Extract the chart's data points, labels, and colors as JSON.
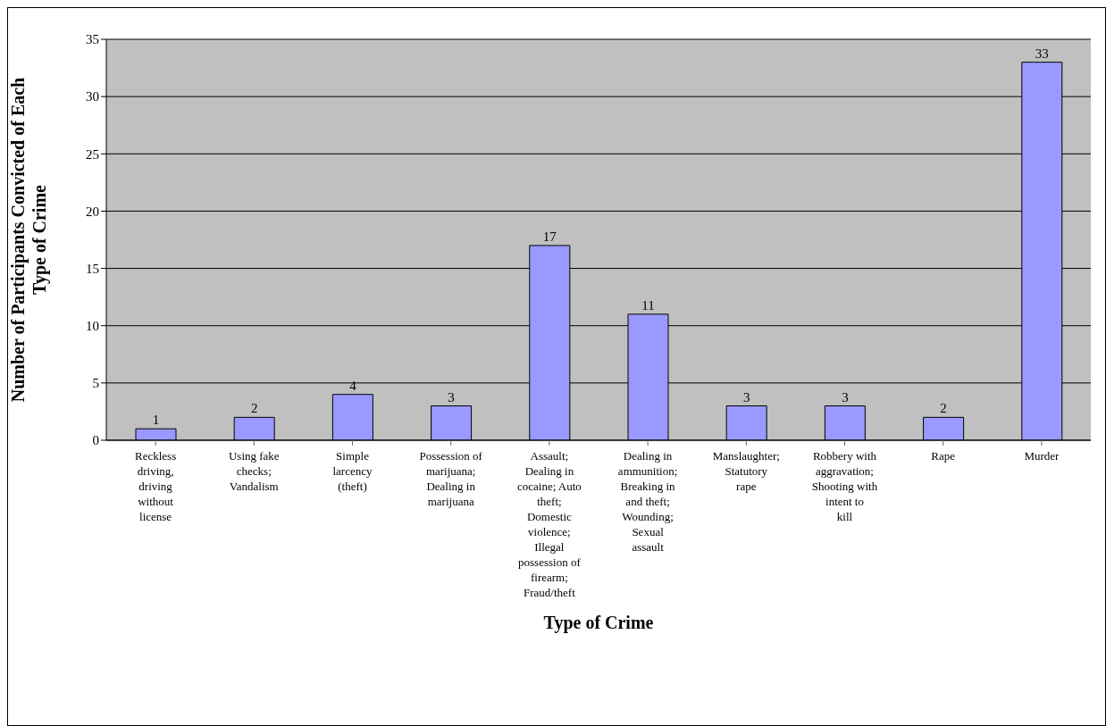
{
  "chart_data": {
    "type": "bar",
    "xlabel": "Type of Crime",
    "ylabel": "Number of Participants Convicted of Each Type of Crime",
    "categories": [
      "Reckless driving, driving without license",
      "Using fake checks; Vandalism",
      "Simple larcency (theft)",
      "Possession of marijuana; Dealing in marijuana",
      "Assault; Dealing in cocaine; Auto theft; Domestic violence; Illegal possession of firearm; Fraud/theft",
      "Dealing in ammunition; Breaking in and theft; Wounding; Sexual assault",
      "Manslaughter; Statutory rape",
      "Robbery with aggravation; Shooting with intent to kill",
      "Rape",
      "Murder"
    ],
    "values": [
      1,
      2,
      4,
      3,
      17,
      11,
      3,
      3,
      2,
      33
    ],
    "color": "#9999ff",
    "ylim": [
      0,
      35
    ],
    "yticks": [
      0,
      5,
      10,
      15,
      20,
      25,
      30,
      35
    ],
    "grid": "y",
    "data_labels": true
  }
}
